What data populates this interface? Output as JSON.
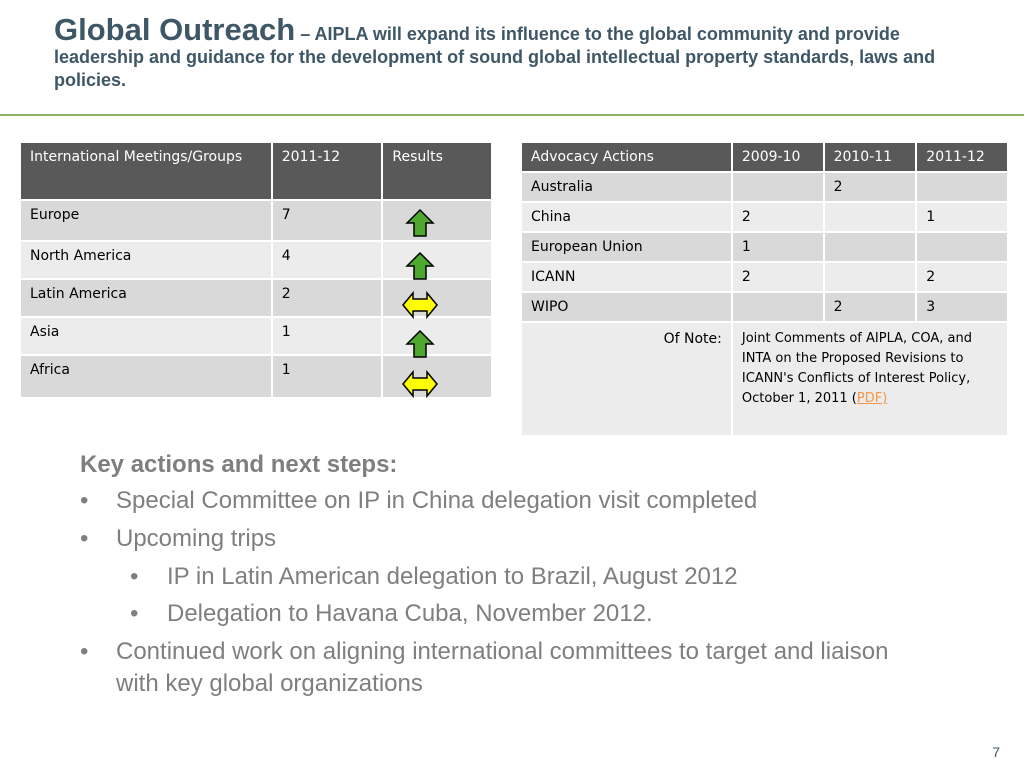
{
  "header": {
    "title": "Global Outreach",
    "subtitle": "– AIPLA will expand its influence to the global community and provide leadership and guidance for the development of sound global intellectual property standards, laws and policies."
  },
  "meetings_table": {
    "header": [
      "International Meetings/Groups",
      "2011-12",
      "Results"
    ],
    "rows": [
      [
        "Europe",
        7
      ],
      [
        "North America",
        4
      ],
      [
        "Latin America",
        2
      ],
      [
        "Asia",
        1
      ],
      [
        "Africa",
        1
      ]
    ]
  },
  "advocacy_table": {
    "header": [
      "Advocacy Actions",
      "2009-10",
      "2010-11",
      "2011-12"
    ],
    "rows": [
      [
        "Australia",
        null,
        2,
        null
      ],
      [
        "China",
        2,
        null,
        1
      ],
      [
        "European Union",
        1,
        null,
        null
      ],
      [
        "ICANN",
        2,
        null,
        2
      ],
      [
        "WIPO",
        null,
        2,
        3
      ]
    ],
    "note": {
      "label": "Of Note:",
      "text": "Joint Comments of AIPLA, COA, and INTA on the Proposed Revisions to ICANN's Conflicts of Interest Policy, October 1, 2011 (",
      "link": "PDF)"
    }
  },
  "key_actions": {
    "heading": "Key actions and next steps:",
    "items": [
      {
        "level": 1,
        "text": "Special Committee on IP in China delegation visit completed"
      },
      {
        "level": 1,
        "text": "Upcoming trips"
      },
      {
        "level": 2,
        "text": "IP in Latin American delegation to Brazil, August 2012"
      },
      {
        "level": 2,
        "text": "Delegation to Havana Cuba, November 2012."
      },
      {
        "level": 1,
        "text": "Continued work on aligning international committees to target and liaison with key global organizations"
      }
    ]
  },
  "page_number": 7
}
